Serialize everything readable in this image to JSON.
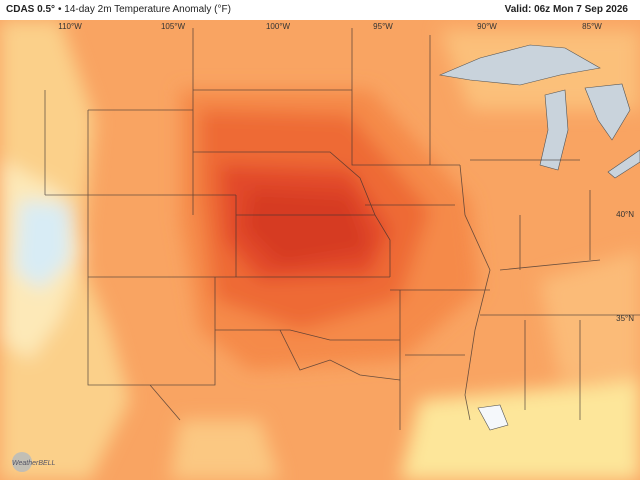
{
  "header": {
    "model": "CDAS 0.5°",
    "title": "• 14-day 2m Temperature Anomaly (°F)",
    "valid": "Valid: 06z Mon 7 Sep 2026"
  },
  "longitude_labels": [
    "110°W",
    "105°W",
    "100°W",
    "95°W",
    "90°W",
    "85°W"
  ],
  "latitude_labels": [
    "40°N",
    "35°N"
  ],
  "logo": "WeatherBELL"
}
